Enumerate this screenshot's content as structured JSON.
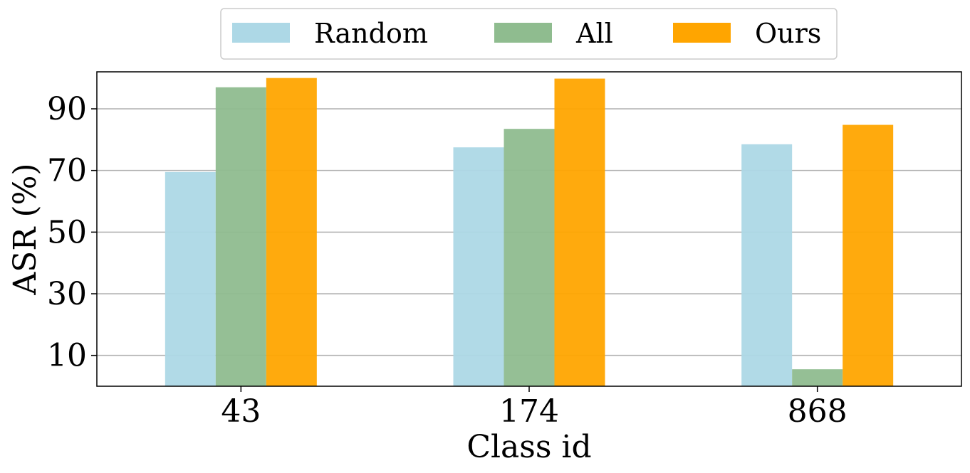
{
  "chart_data": {
    "type": "bar",
    "categories": [
      "43",
      "174",
      "868"
    ],
    "series": [
      {
        "name": "Random",
        "values": [
          69.5,
          77.5,
          78.5
        ],
        "color": "#add8e6"
      },
      {
        "name": "All",
        "values": [
          97,
          83.5,
          5.5
        ],
        "color": "#8fbc8f"
      },
      {
        "name": "Ours",
        "values": [
          100,
          99.8,
          84.8
        ],
        "color": "#ffa500"
      }
    ],
    "xlabel": "Class id",
    "ylabel": "ASR (%)",
    "ylim": [
      0,
      102
    ],
    "yticks": [
      10,
      30,
      50,
      70,
      90
    ],
    "grid": "horizontal",
    "legend_position": "top-center"
  }
}
